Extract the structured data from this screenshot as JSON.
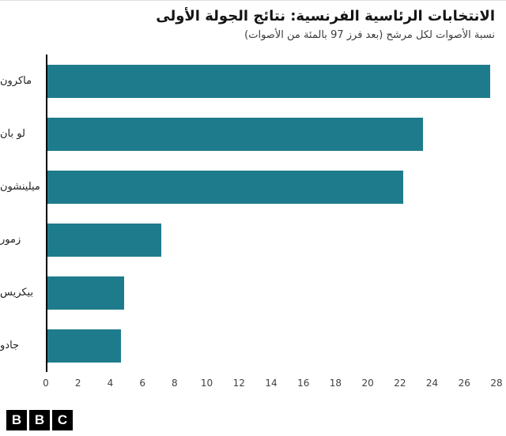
{
  "header": {
    "title": "الانتخابات الرئاسية الفرنسية: نتائج الجولة الأولى",
    "subtitle": "نسبة الأصوات لكل مرشح (بعد فرز 97 بالمئة من الأصوات)"
  },
  "chart_data": {
    "type": "bar",
    "orientation": "horizontal",
    "title": "الانتخابات الرئاسية الفرنسية: نتائج الجولة الأولى",
    "subtitle": "نسبة الأصوات لكل مرشح (بعد فرز 97 بالمئة من الأصوات)",
    "categories": [
      "ماكرون",
      "لو بان",
      "ميلينشون",
      "زمور",
      "بيكريس",
      "جادو"
    ],
    "values": [
      27.6,
      23.4,
      22.2,
      7.1,
      4.8,
      4.6
    ],
    "xlim": [
      0,
      28
    ],
    "ticks": [
      0,
      2,
      4,
      6,
      8,
      10,
      12,
      14,
      16,
      18,
      20,
      22,
      24,
      26,
      28
    ],
    "bar_color": "#1e7b8c",
    "axis_line_color": "#000000",
    "grid": false,
    "legend": false
  },
  "footer": {
    "logo_letters": [
      "B",
      "B",
      "C"
    ]
  }
}
